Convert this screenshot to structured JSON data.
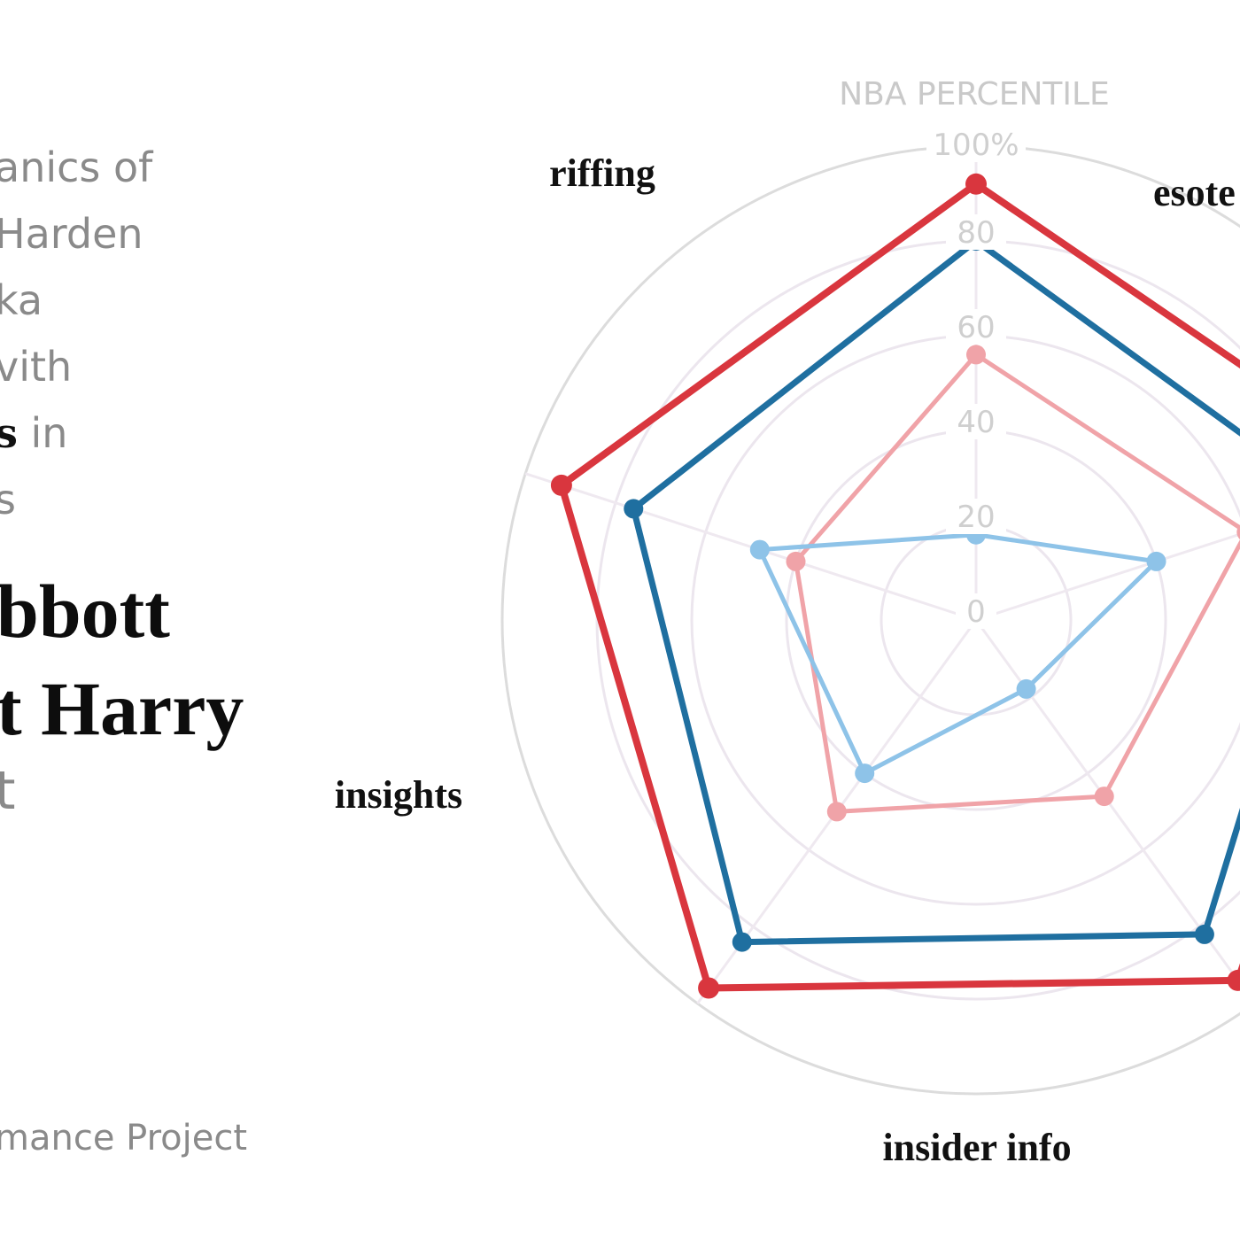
{
  "left_text": {
    "lines": [
      {
        "text": "anics of"
      },
      {
        "text": "Harden"
      },
      {
        "text": "ka"
      },
      {
        "text": "vith"
      },
      {
        "bold": "s",
        "text": " in"
      },
      {
        "text": "s"
      }
    ],
    "big_lines": [
      "bbott",
      "t Harry"
    ],
    "faint_line": "t",
    "credit": "mance Project"
  },
  "chart_data": {
    "type": "radar",
    "title": "NBA PERCENTILE",
    "radial_ticks": [
      "0",
      "20",
      "40",
      "60",
      "80",
      "100%"
    ],
    "axes": [
      "riffing",
      "esoteric",
      "",
      "insider info",
      "insights"
    ],
    "axis_labels_shown": [
      "riffing",
      "esote",
      "insider info",
      "insights"
    ],
    "rlim": [
      0,
      100
    ],
    "series": [
      {
        "color": "#d9363e",
        "values": [
          96,
          92,
          92,
          96,
          94
        ]
      },
      {
        "color": "#1f6fa0",
        "values": [
          84,
          76,
          80,
          80,
          82
        ]
      },
      {
        "color": "#f0a3a8",
        "values": [
          50,
          40,
          56,
          60,
          46
        ]
      },
      {
        "color": "#8ec3e8",
        "values": [
          40,
          48,
          18,
          40,
          18
        ]
      }
    ]
  }
}
